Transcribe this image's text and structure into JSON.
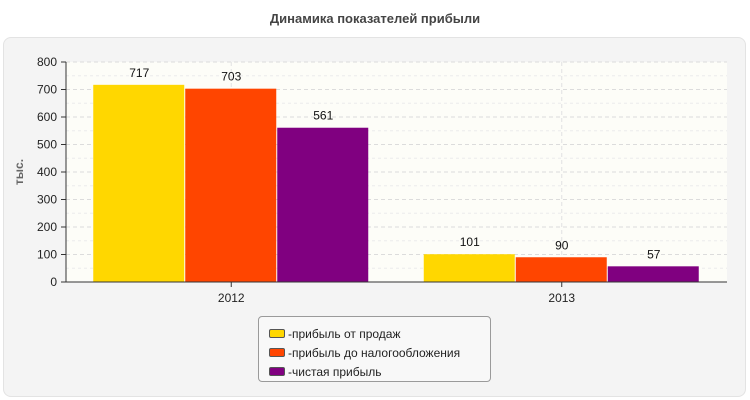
{
  "colors": {
    "series_1": "#ffd700",
    "series_2": "#ff4500",
    "series_3": "#800080"
  },
  "chart_data": {
    "type": "bar",
    "title": "Динамика показателей прибыли",
    "xlabel": "",
    "ylabel": "тыс.",
    "categories": [
      "2012",
      "2013"
    ],
    "series": [
      {
        "name": "прибыль от продаж",
        "values": [
          717,
          101
        ]
      },
      {
        "name": "прибыль до налогообложения",
        "values": [
          703,
          90
        ]
      },
      {
        "name": "чистая прибыль",
        "values": [
          561,
          57
        ]
      }
    ],
    "yticks": [
      "0",
      "100",
      "200",
      "300",
      "400",
      "500",
      "600",
      "700",
      "800"
    ],
    "ylim": [
      0,
      800
    ],
    "grid": true,
    "data_labels": true,
    "legend_position": "bottom-center",
    "legend_prefix": "- "
  }
}
